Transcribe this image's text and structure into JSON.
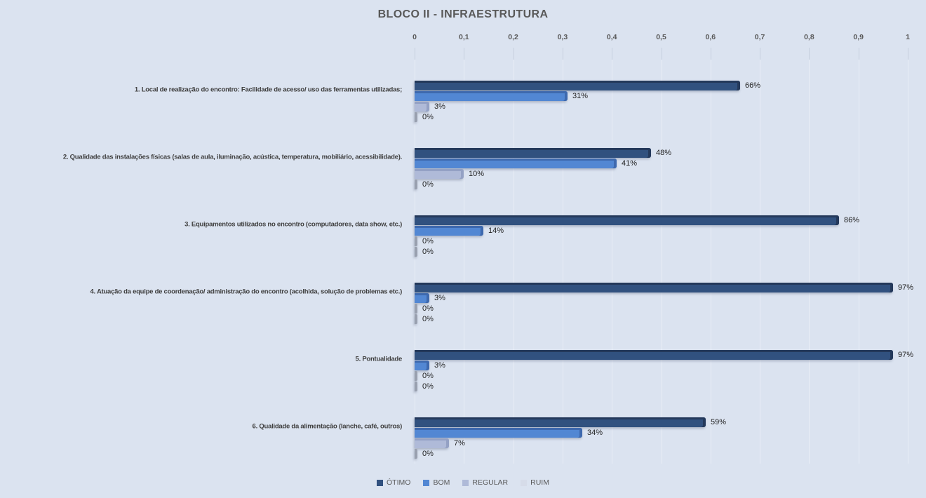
{
  "chart_data": {
    "type": "bar",
    "orientation": "horizontal",
    "title": "BLOCO II - INFRAESTRUTURA",
    "xlabel": "",
    "ylabel": "",
    "xlim": [
      0,
      1
    ],
    "x_tick_labels": [
      "0",
      "0,1",
      "0,2",
      "0,3",
      "0,4",
      "0,5",
      "0,6",
      "0,7",
      "0,8",
      "0,9",
      "1"
    ],
    "grid": true,
    "legend_position": "bottom",
    "categories": [
      "1. Local de realização do encontro: Facilidade de acesso/ uso das ferramentas utilizadas;",
      "2. Qualidade das instalações físicas (salas de aula, iluminação, acústica, temperatura, mobiliário, acessibilidade).",
      "3. Equipamentos utilizados no encontro (computadores, data show, etc.)",
      "4. Atuação da equipe de coordenação/ administração do encontro (acolhida, solução de problemas etc.)",
      "5. Pontualidade",
      "6. Qualidade da alimentação (lanche, café, outros)"
    ],
    "series": [
      {
        "name": "ÓTIMO",
        "color": "#31517F",
        "edge_color": "#24395B",
        "values": [
          0.66,
          0.48,
          0.86,
          0.97,
          0.97,
          0.59
        ],
        "data_labels": [
          "66%",
          "48%",
          "86%",
          "97%",
          "97%",
          "59%"
        ]
      },
      {
        "name": "BOM",
        "color": "#5287D3",
        "edge_color": "#3E69AE",
        "values": [
          0.31,
          0.41,
          0.14,
          0.03,
          0.03,
          0.34
        ],
        "data_labels": [
          "31%",
          "41%",
          "14%",
          "3%",
          "3%",
          "34%"
        ]
      },
      {
        "name": "REGULAR",
        "color": "#AFBAD8",
        "edge_color": "#94A1C4",
        "values": [
          0.03,
          0.1,
          0.0,
          0.0,
          0.0,
          0.07
        ],
        "data_labels": [
          "3%",
          "10%",
          "0%",
          "0%",
          "0%",
          "7%"
        ]
      },
      {
        "name": "RUIM",
        "color": "#D6DCE9",
        "edge_color": "#BDC5D6",
        "values": [
          0.0,
          0.0,
          0.0,
          0.0,
          0.0,
          0.0
        ],
        "data_labels": [
          "0%",
          "0%",
          "0%",
          "0%",
          "0%",
          "0%"
        ]
      }
    ]
  },
  "palette": {
    "background": "#DBE3F0",
    "gridline": "#E8EDF6",
    "tick_mark": "#C6CFDE",
    "title_text": "#595959",
    "tick_text": "#595959",
    "category_text": "#404040",
    "value_text": "#1F1F1F",
    "legend_text": "#595959",
    "zero_bar": "#99A0AF"
  }
}
